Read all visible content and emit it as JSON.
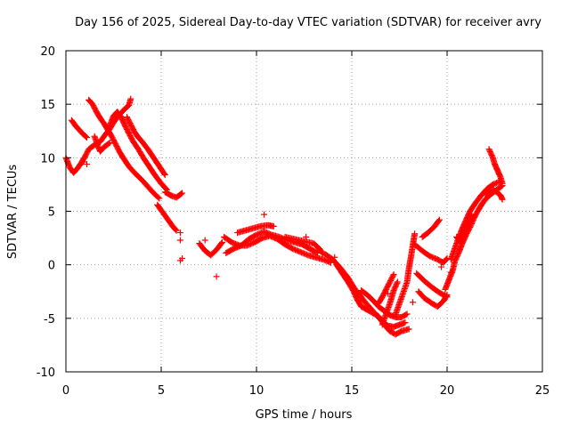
{
  "chart_data": {
    "type": "scatter",
    "title": "Day 156 of 2025, Sidereal Day-to-day VTEC variation (SDTVAR) for receiver avry",
    "xlabel": "GPS time / hours",
    "ylabel": "SDTVAR / TECUs",
    "xlim": [
      0,
      25
    ],
    "ylim": [
      -10,
      20
    ],
    "xticks": [
      0,
      5,
      10,
      15,
      20,
      25
    ],
    "yticks": [
      -10,
      -5,
      0,
      5,
      10,
      15,
      20
    ],
    "grid": true,
    "marker": "+",
    "color": "#ff0000",
    "tracks": [
      [
        [
          0.0,
          10.0
        ],
        [
          0.2,
          9.1
        ],
        [
          0.4,
          8.6
        ],
        [
          0.6,
          9.0
        ],
        [
          0.8,
          9.5
        ],
        [
          1.0,
          10.1
        ],
        [
          1.2,
          10.8
        ],
        [
          1.5,
          11.2
        ],
        [
          1.8,
          11.5
        ],
        [
          2.0,
          12.0
        ],
        [
          2.3,
          12.7
        ],
        [
          2.5,
          13.3
        ],
        [
          2.7,
          13.8
        ],
        [
          3.0,
          14.4
        ],
        [
          3.3,
          14.9
        ],
        [
          3.4,
          15.5
        ]
      ],
      [
        [
          1.2,
          15.4
        ],
        [
          1.4,
          15.0
        ],
        [
          1.6,
          14.3
        ],
        [
          1.8,
          13.7
        ],
        [
          2.0,
          13.2
        ],
        [
          2.2,
          12.6
        ],
        [
          2.4,
          12.0
        ],
        [
          2.6,
          11.3
        ],
        [
          2.8,
          10.6
        ],
        [
          3.0,
          10.0
        ],
        [
          3.3,
          9.2
        ],
        [
          3.6,
          8.6
        ],
        [
          4.0,
          7.9
        ],
        [
          4.3,
          7.3
        ],
        [
          4.6,
          6.7
        ],
        [
          4.9,
          6.2
        ]
      ],
      [
        [
          2.3,
          13.0
        ],
        [
          2.5,
          13.9
        ],
        [
          2.7,
          14.3
        ],
        [
          2.9,
          13.8
        ],
        [
          3.1,
          13.0
        ],
        [
          3.3,
          12.3
        ],
        [
          3.5,
          11.6
        ],
        [
          3.8,
          10.8
        ],
        [
          4.1,
          9.9
        ],
        [
          4.4,
          9.1
        ],
        [
          4.7,
          8.3
        ],
        [
          5.0,
          7.6
        ],
        [
          5.3,
          7.0
        ]
      ],
      [
        [
          3.2,
          13.8
        ],
        [
          3.4,
          13.1
        ],
        [
          3.6,
          12.4
        ],
        [
          3.8,
          11.9
        ],
        [
          4.0,
          11.5
        ],
        [
          4.3,
          10.8
        ],
        [
          4.6,
          10.0
        ],
        [
          4.9,
          9.2
        ],
        [
          5.2,
          8.4
        ]
      ],
      [
        [
          1.5,
          12.0
        ],
        [
          1.7,
          11.0
        ],
        [
          1.8,
          10.6
        ],
        [
          2.0,
          11.0
        ],
        [
          2.3,
          11.4
        ]
      ],
      [
        [
          0.3,
          13.5
        ],
        [
          0.5,
          13.0
        ],
        [
          0.7,
          12.6
        ],
        [
          0.9,
          12.2
        ],
        [
          1.1,
          11.9
        ]
      ],
      [
        [
          5.2,
          6.8
        ],
        [
          5.4,
          6.6
        ],
        [
          5.6,
          6.4
        ],
        [
          5.8,
          6.3
        ],
        [
          6.1,
          6.7
        ]
      ],
      [
        [
          4.8,
          5.6
        ],
        [
          5.0,
          5.1
        ],
        [
          5.2,
          4.6
        ],
        [
          5.4,
          4.1
        ],
        [
          5.6,
          3.6
        ],
        [
          5.8,
          3.2
        ]
      ],
      [
        [
          7.0,
          2.0
        ],
        [
          7.3,
          1.3
        ],
        [
          7.6,
          0.9
        ],
        [
          7.9,
          1.4
        ],
        [
          8.2,
          2.1
        ]
      ],
      [
        [
          8.3,
          2.6
        ],
        [
          8.7,
          2.1
        ],
        [
          9.1,
          1.8
        ],
        [
          9.5,
          1.8
        ],
        [
          9.9,
          2.1
        ],
        [
          10.3,
          2.5
        ],
        [
          10.7,
          2.7
        ],
        [
          11.1,
          2.4
        ],
        [
          11.5,
          1.9
        ],
        [
          11.9,
          1.5
        ],
        [
          12.3,
          1.2
        ],
        [
          12.7,
          0.9
        ],
        [
          13.1,
          0.7
        ],
        [
          13.5,
          0.5
        ],
        [
          13.9,
          0.2
        ]
      ],
      [
        [
          8.4,
          1.1
        ],
        [
          8.8,
          1.5
        ],
        [
          9.2,
          1.8
        ],
        [
          9.6,
          2.4
        ],
        [
          10.0,
          2.8
        ],
        [
          10.4,
          3.1
        ],
        [
          10.8,
          2.8
        ],
        [
          11.2,
          2.6
        ],
        [
          11.6,
          2.3
        ],
        [
          12.0,
          2.1
        ],
        [
          12.4,
          1.9
        ],
        [
          12.8,
          1.5
        ],
        [
          13.2,
          1.1
        ]
      ],
      [
        [
          9.0,
          3.0
        ],
        [
          9.4,
          3.2
        ],
        [
          9.8,
          3.4
        ],
        [
          10.2,
          3.6
        ],
        [
          10.6,
          3.7
        ],
        [
          10.9,
          3.6
        ]
      ],
      [
        [
          11.5,
          2.6
        ],
        [
          12.0,
          2.4
        ],
        [
          12.5,
          2.2
        ],
        [
          13.0,
          2.0
        ],
        [
          13.3,
          1.5
        ],
        [
          13.5,
          1.0
        ]
      ],
      [
        [
          13.6,
          1.0
        ],
        [
          14.0,
          0.5
        ],
        [
          14.4,
          -0.3
        ],
        [
          14.8,
          -1.2
        ],
        [
          15.1,
          -2.1
        ],
        [
          15.4,
          -2.8
        ],
        [
          15.7,
          -3.5
        ],
        [
          16.0,
          -4.1
        ],
        [
          16.3,
          -4.7
        ],
        [
          16.6,
          -5.3
        ],
        [
          16.9,
          -5.7
        ],
        [
          17.2,
          -5.8
        ],
        [
          17.5,
          -5.6
        ],
        [
          17.8,
          -5.4
        ]
      ],
      [
        [
          14.2,
          0.0
        ],
        [
          14.5,
          -0.8
        ],
        [
          14.8,
          -1.6
        ],
        [
          15.1,
          -2.5
        ],
        [
          15.3,
          -3.3
        ],
        [
          15.5,
          -3.9
        ],
        [
          15.8,
          -4.2
        ],
        [
          16.1,
          -4.5
        ],
        [
          16.4,
          -4.8
        ],
        [
          16.7,
          -5.6
        ],
        [
          17.0,
          -6.2
        ],
        [
          17.3,
          -6.5
        ],
        [
          17.6,
          -6.2
        ],
        [
          18.0,
          -6.0
        ]
      ],
      [
        [
          15.5,
          -2.4
        ],
        [
          15.8,
          -2.8
        ],
        [
          16.1,
          -3.3
        ],
        [
          16.4,
          -3.9
        ],
        [
          16.7,
          -4.3
        ],
        [
          17.0,
          -4.7
        ],
        [
          17.3,
          -4.9
        ],
        [
          17.6,
          -4.9
        ],
        [
          17.9,
          -4.6
        ]
      ],
      [
        [
          16.4,
          -3.6
        ],
        [
          16.6,
          -3.0
        ],
        [
          16.8,
          -2.3
        ],
        [
          17.0,
          -1.6
        ],
        [
          17.2,
          -0.9
        ]
      ],
      [
        [
          17.3,
          -4.6
        ],
        [
          17.5,
          -3.6
        ],
        [
          17.7,
          -2.6
        ],
        [
          17.9,
          -1.6
        ],
        [
          18.0,
          -0.3
        ],
        [
          18.1,
          0.7
        ],
        [
          18.2,
          1.8
        ],
        [
          18.3,
          2.9
        ]
      ],
      [
        [
          16.6,
          -5.6
        ],
        [
          16.8,
          -4.6
        ],
        [
          17.0,
          -3.6
        ],
        [
          17.2,
          -2.4
        ],
        [
          17.4,
          -1.6
        ]
      ],
      [
        [
          18.3,
          1.9
        ],
        [
          18.7,
          1.3
        ],
        [
          19.1,
          0.8
        ],
        [
          19.5,
          0.5
        ],
        [
          19.8,
          0.2
        ],
        [
          20.0,
          0.6
        ]
      ],
      [
        [
          18.4,
          -0.8
        ],
        [
          18.8,
          -1.5
        ],
        [
          19.2,
          -2.1
        ],
        [
          19.6,
          -2.6
        ],
        [
          20.0,
          -3.0
        ]
      ],
      [
        [
          18.7,
          2.6
        ],
        [
          19.0,
          3.0
        ],
        [
          19.3,
          3.5
        ],
        [
          19.6,
          4.2
        ]
      ],
      [
        [
          18.5,
          -2.5
        ],
        [
          18.8,
          -3.1
        ],
        [
          19.2,
          -3.6
        ],
        [
          19.5,
          -3.9
        ],
        [
          19.8,
          -3.4
        ],
        [
          20.0,
          -2.8
        ]
      ],
      [
        [
          19.9,
          -2.3
        ],
        [
          20.1,
          -1.4
        ],
        [
          20.3,
          -0.5
        ],
        [
          20.4,
          0.3
        ],
        [
          20.6,
          1.1
        ],
        [
          20.8,
          2.0
        ],
        [
          21.0,
          2.8
        ],
        [
          21.2,
          3.5
        ],
        [
          21.4,
          4.3
        ],
        [
          21.6,
          5.0
        ],
        [
          21.8,
          5.6
        ],
        [
          22.0,
          6.1
        ],
        [
          22.3,
          6.6
        ],
        [
          22.6,
          7.0
        ],
        [
          22.9,
          7.4
        ]
      ],
      [
        [
          20.2,
          0.5
        ],
        [
          20.4,
          1.5
        ],
        [
          20.6,
          2.5
        ],
        [
          20.8,
          3.4
        ],
        [
          21.0,
          4.2
        ],
        [
          21.2,
          5.0
        ],
        [
          21.5,
          5.8
        ],
        [
          21.8,
          6.5
        ],
        [
          22.1,
          7.1
        ],
        [
          22.4,
          7.5
        ],
        [
          22.8,
          7.8
        ]
      ],
      [
        [
          20.5,
          2.6
        ],
        [
          20.7,
          2.1
        ],
        [
          20.9,
          3.0
        ],
        [
          21.1,
          3.9
        ],
        [
          21.3,
          4.7
        ]
      ],
      [
        [
          22.2,
          10.8
        ],
        [
          22.4,
          10.0
        ],
        [
          22.5,
          9.4
        ],
        [
          22.6,
          9.0
        ],
        [
          22.7,
          8.6
        ],
        [
          22.8,
          8.2
        ],
        [
          22.9,
          7.6
        ]
      ],
      [
        [
          22.0,
          6.6
        ],
        [
          22.2,
          6.9
        ],
        [
          22.4,
          7.0
        ],
        [
          22.6,
          6.8
        ],
        [
          22.8,
          6.5
        ],
        [
          22.9,
          6.1
        ]
      ]
    ],
    "outliers": [
      [
        0.9,
        9.6
      ],
      [
        1.1,
        9.4
      ],
      [
        6.0,
        3.0
      ],
      [
        6.0,
        2.3
      ],
      [
        6.0,
        0.4
      ],
      [
        6.1,
        0.6
      ],
      [
        7.3,
        2.3
      ],
      [
        7.9,
        -1.1
      ],
      [
        10.4,
        4.7
      ],
      [
        12.6,
        2.6
      ],
      [
        14.1,
        0.7
      ],
      [
        16.9,
        -2.7
      ],
      [
        18.2,
        -3.5
      ],
      [
        19.7,
        -0.2
      ],
      [
        20.2,
        -0.7
      ]
    ]
  }
}
